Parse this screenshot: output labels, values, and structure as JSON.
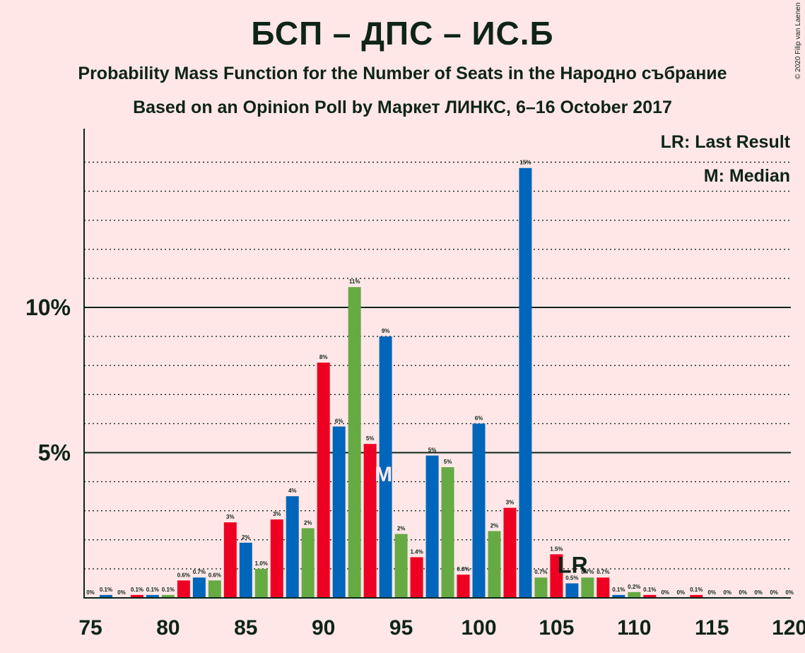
{
  "title": "БСП – ДПС – ИС.Б",
  "subtitle": "Probability Mass Function for the Number of Seats in the Народно събрание",
  "subtitle2": "Based on an Opinion Poll by Маркет ЛИНКС, 6–16 October 2017",
  "copyright": "© 2020 Filip van Laenen",
  "legend": {
    "lr": "LR: Last Result",
    "median": "M: Median"
  },
  "markers": {
    "lr_label": "LR",
    "lr_seat": 106,
    "median_label": "M",
    "median_seat": 94
  },
  "colors": {
    "red": "#EE0022",
    "blue": "#0066BB",
    "green": "#66AA44",
    "text": "#0E2417",
    "background": "#FFE7E7"
  },
  "chart_data": {
    "type": "bar",
    "x": [
      75,
      76,
      77,
      78,
      79,
      80,
      81,
      82,
      83,
      84,
      85,
      86,
      87,
      88,
      89,
      90,
      91,
      92,
      93,
      94,
      95,
      96,
      97,
      98,
      99,
      100,
      101,
      102,
      103,
      104,
      105,
      106,
      107,
      108,
      109,
      110,
      111,
      112,
      113,
      114,
      115,
      116,
      117,
      118,
      119,
      120
    ],
    "values": [
      0,
      0.1,
      0,
      0.1,
      0.1,
      0.1,
      0.6,
      0.7,
      0.6,
      2.6,
      1.9,
      1.0,
      2.7,
      3.5,
      2.4,
      8.1,
      5.9,
      10.7,
      5.3,
      9.0,
      2.2,
      1.4,
      4.9,
      4.5,
      0.8,
      6.0,
      2.3,
      3.1,
      14.8,
      0.7,
      1.5,
      0.5,
      0.7,
      0.7,
      0.1,
      0.2,
      0.1,
      0,
      0,
      0.1,
      0,
      0,
      0,
      0,
      0,
      0
    ],
    "labels": [
      "0%",
      "0.1%",
      "0%",
      "0.1%",
      "0.1%",
      "0.1%",
      "0.6%",
      "0.7%",
      "0.6%",
      "3%",
      "2%",
      "1.0%",
      "3%",
      "4%",
      "2%",
      "8%",
      "6%",
      "11%",
      "5%",
      "9%",
      "2%",
      "1.4%",
      "5%",
      "5%",
      "0.8%",
      "6%",
      "2%",
      "3%",
      "15%",
      "0.7%",
      "1.5%",
      "0.5%",
      "0.7%",
      "0.7%",
      "0.1%",
      "0.2%",
      "0.1%",
      "0%",
      "0%",
      "0.1%",
      "0%",
      "0%",
      "0%",
      "0%",
      "0%",
      "0%"
    ],
    "bar_colors": [
      "red",
      "blue",
      "green",
      "red",
      "blue",
      "green",
      "red",
      "blue",
      "green",
      "red",
      "blue",
      "green",
      "red",
      "blue",
      "green",
      "red",
      "blue",
      "green",
      "red",
      "blue",
      "green",
      "red",
      "blue",
      "green",
      "red",
      "blue",
      "green",
      "red",
      "blue",
      "green",
      "red",
      "blue",
      "green",
      "red",
      "blue",
      "green",
      "red",
      "blue",
      "green",
      "red",
      "blue",
      "green",
      "red",
      "blue",
      "green",
      "red"
    ],
    "xticks": [
      75,
      80,
      85,
      90,
      95,
      100,
      105,
      110,
      115,
      120
    ],
    "yticks": [
      5,
      10
    ],
    "ytick_labels": [
      "5%",
      "10%"
    ],
    "ylim": [
      0,
      16
    ],
    "xlim": [
      75,
      120
    ],
    "grid": true,
    "legend_position": "top-right"
  }
}
